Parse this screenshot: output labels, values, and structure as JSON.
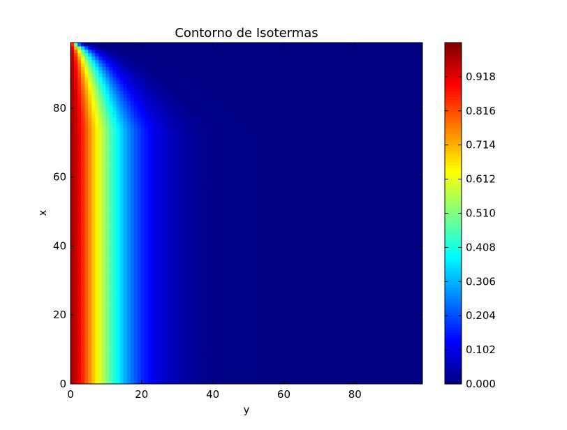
{
  "chart_data": {
    "type": "heatmap",
    "title": "Contorno de Isotermas",
    "xlabel": "y",
    "ylabel": "x",
    "xlim": [
      0,
      99
    ],
    "ylim": [
      0,
      99
    ],
    "x_ticks": [
      "0",
      "20",
      "40",
      "60",
      "80"
    ],
    "y_ticks": [
      "0",
      "20",
      "40",
      "60",
      "80"
    ],
    "colormap": "jet",
    "colorbar": {
      "range": [
        0.0,
        1.02
      ],
      "ticks": [
        "0.000",
        "0.102",
        "0.204",
        "0.306",
        "0.408",
        "0.510",
        "0.612",
        "0.714",
        "0.816",
        "0.918"
      ]
    },
    "grid": false,
    "field_profile": {
      "description_of_values": "temperature vs y (constant along x except near x=99 where top boundary is cold)",
      "y": [
        0,
        2,
        4,
        6,
        8,
        10,
        12,
        14,
        16,
        18,
        20,
        24,
        28,
        32,
        36,
        40,
        50,
        60,
        99
      ],
      "value": [
        1.0,
        0.93,
        0.83,
        0.72,
        0.62,
        0.52,
        0.43,
        0.35,
        0.28,
        0.22,
        0.17,
        0.1,
        0.06,
        0.035,
        0.02,
        0.01,
        0.003,
        0.0,
        0.0
      ]
    }
  }
}
